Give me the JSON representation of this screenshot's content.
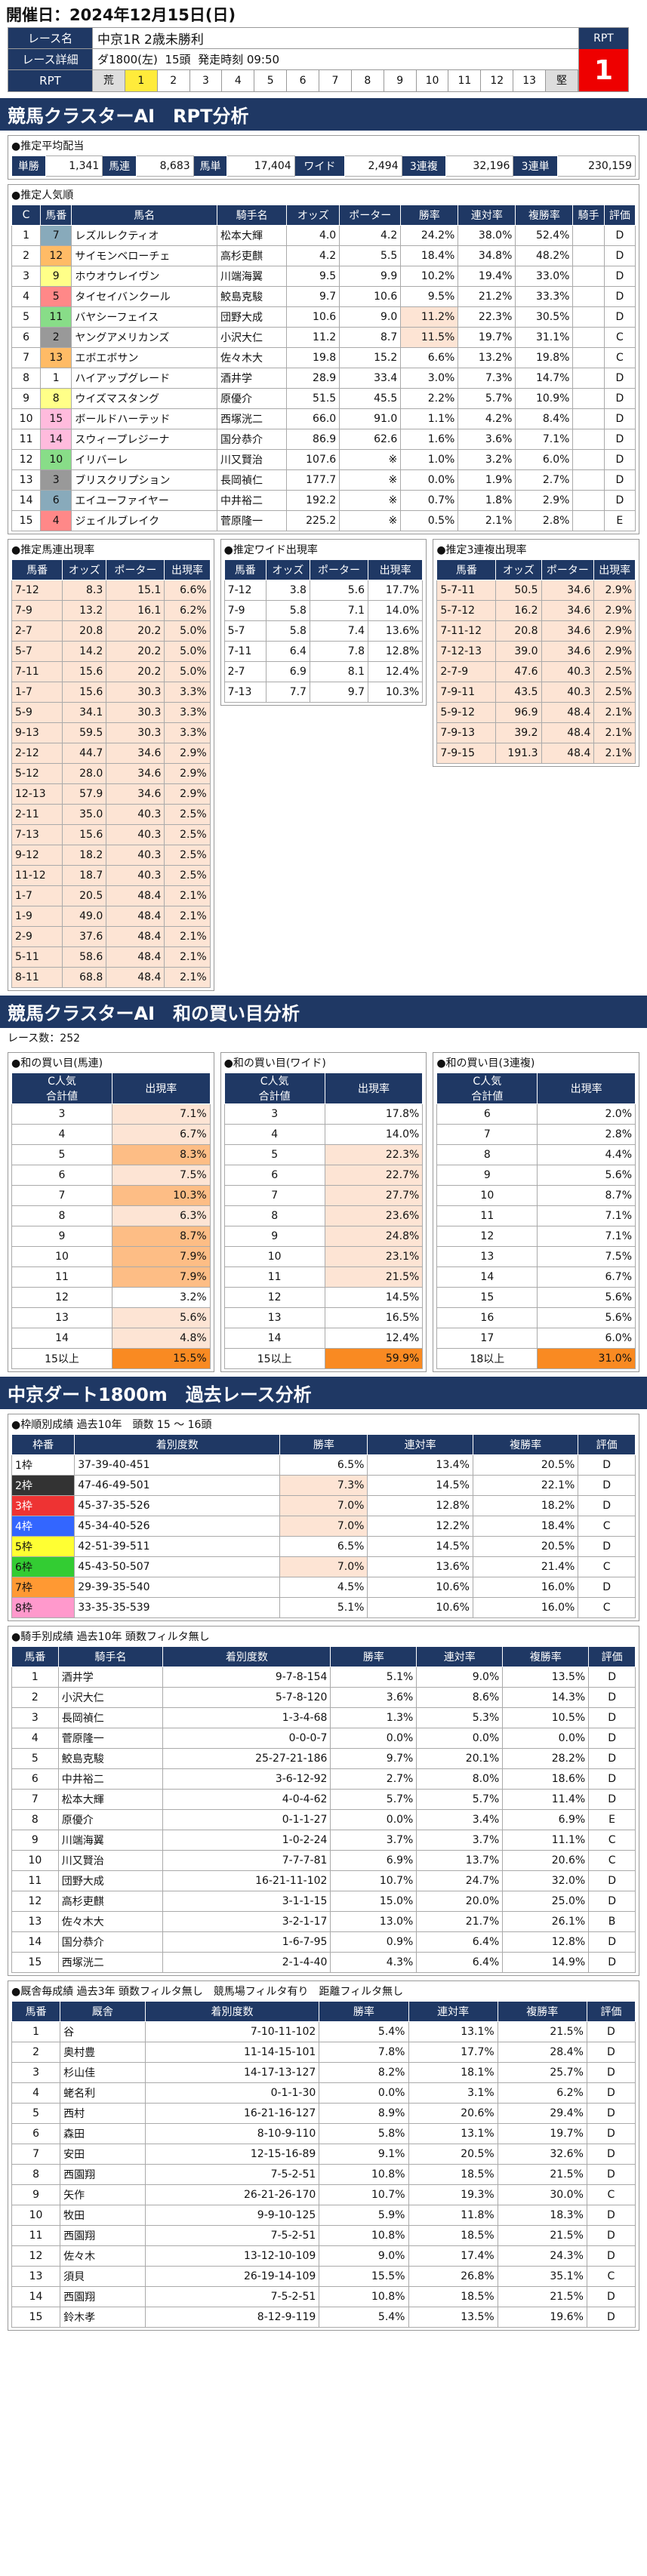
{
  "header": {
    "date": "開催日：2024年12月15日(日)"
  },
  "race": {
    "name_label": "レース名",
    "name": "中京1R 2歳未勝利",
    "detail_label": "レース詳細",
    "course": "ダ1800(左)",
    "heads": "15頭",
    "start": "発走時刻 09:50",
    "rpt_label": "RPT",
    "rpt_value": "1",
    "rpt_head": "RPT",
    "rpt_row": [
      "荒",
      "1",
      "2",
      "3",
      "4",
      "5",
      "6",
      "7",
      "8",
      "9",
      "10",
      "11",
      "12",
      "13",
      "堅"
    ]
  },
  "s1": {
    "title": "競馬クラスターAI　RPT分析",
    "payout_title": "●推定平均配当",
    "payout": [
      [
        "単勝",
        "1,341"
      ],
      [
        "馬連",
        "8,683"
      ],
      [
        "馬単",
        "17,404"
      ],
      [
        "ワイド",
        "2,494"
      ],
      [
        "3連複",
        "32,196"
      ],
      [
        "3連単",
        "230,159"
      ]
    ],
    "pop_title": "●推定人気順",
    "pop_head": [
      "C",
      "馬番",
      "馬名",
      "騎手名",
      "オッズ",
      "ポーター",
      "勝率",
      "連対率",
      "複勝率",
      "騎手",
      "評価"
    ],
    "pop_rows": [
      [
        "1",
        "7",
        "レズルレクティオ",
        "松本大輝",
        "4.0",
        "4.2",
        "24.2%",
        "38.0%",
        "52.4%",
        "",
        "D"
      ],
      [
        "2",
        "12",
        "サイモンベローチェ",
        "高杉吏麒",
        "4.2",
        "5.5",
        "18.4%",
        "34.8%",
        "48.2%",
        "",
        "D"
      ],
      [
        "3",
        "9",
        "ホウオウレイヴン",
        "川端海翼",
        "9.5",
        "9.9",
        "10.2%",
        "19.4%",
        "33.0%",
        "",
        "D"
      ],
      [
        "4",
        "5",
        "タイセイバンクール",
        "鮫島克駿",
        "9.7",
        "10.6",
        "9.5%",
        "21.2%",
        "33.3%",
        "",
        "D"
      ],
      [
        "5",
        "11",
        "バヤシーフェイス",
        "団野大成",
        "10.6",
        "9.0",
        "11.2%",
        "22.3%",
        "30.5%",
        "",
        "D"
      ],
      [
        "6",
        "2",
        "ヤングアメリカンズ",
        "小沢大仁",
        "11.2",
        "8.7",
        "11.5%",
        "19.7%",
        "31.1%",
        "",
        "C"
      ],
      [
        "7",
        "13",
        "エボエボサン",
        "佐々木大",
        "19.8",
        "15.2",
        "6.6%",
        "13.2%",
        "19.8%",
        "",
        "C"
      ],
      [
        "8",
        "1",
        "ハイアップグレード",
        "酒井学",
        "28.9",
        "33.4",
        "3.0%",
        "7.3%",
        "14.7%",
        "",
        "D"
      ],
      [
        "9",
        "8",
        "ウイズマスタング",
        "原優介",
        "51.5",
        "45.5",
        "2.2%",
        "5.7%",
        "10.9%",
        "",
        "D"
      ],
      [
        "10",
        "15",
        "ボールドハーテッド",
        "西塚洸二",
        "66.0",
        "91.0",
        "1.1%",
        "4.2%",
        "8.4%",
        "",
        "D"
      ],
      [
        "11",
        "14",
        "スウィープレジーナ",
        "国分恭介",
        "86.9",
        "62.6",
        "1.6%",
        "3.6%",
        "7.1%",
        "",
        "D"
      ],
      [
        "12",
        "10",
        "イリバーレ",
        "川又賢治",
        "107.6",
        "※",
        "1.0%",
        "3.2%",
        "6.0%",
        "",
        "D"
      ],
      [
        "13",
        "3",
        "ブリスクリプション",
        "長岡禎仁",
        "177.7",
        "※",
        "0.0%",
        "1.9%",
        "2.7%",
        "",
        "D"
      ],
      [
        "14",
        "6",
        "エイユーファイヤー",
        "中井裕二",
        "192.2",
        "※",
        "0.7%",
        "1.8%",
        "2.9%",
        "",
        "D"
      ],
      [
        "15",
        "4",
        "ジェイルブレイク",
        "菅原隆一",
        "225.2",
        "※",
        "0.5%",
        "2.1%",
        "2.8%",
        "",
        "E"
      ]
    ],
    "bet_head": [
      "馬番",
      "オッズ",
      "ポーター",
      "出現率"
    ],
    "umaren_title": "●推定馬連出現率",
    "umaren": [
      [
        "7-12",
        "8.3",
        "15.1",
        "6.6%"
      ],
      [
        "7-9",
        "13.2",
        "16.1",
        "6.2%"
      ],
      [
        "2-7",
        "20.8",
        "20.2",
        "5.0%"
      ],
      [
        "5-7",
        "14.2",
        "20.2",
        "5.0%"
      ],
      [
        "7-11",
        "15.6",
        "20.2",
        "5.0%"
      ],
      [
        "1-7",
        "15.6",
        "30.3",
        "3.3%"
      ],
      [
        "5-9",
        "34.1",
        "30.3",
        "3.3%"
      ],
      [
        "9-13",
        "59.5",
        "30.3",
        "3.3%"
      ],
      [
        "2-12",
        "44.7",
        "34.6",
        "2.9%"
      ],
      [
        "5-12",
        "28.0",
        "34.6",
        "2.9%"
      ],
      [
        "12-13",
        "57.9",
        "34.6",
        "2.9%"
      ],
      [
        "2-11",
        "35.0",
        "40.3",
        "2.5%"
      ],
      [
        "7-13",
        "15.6",
        "40.3",
        "2.5%"
      ],
      [
        "9-12",
        "18.2",
        "40.3",
        "2.5%"
      ],
      [
        "11-12",
        "18.7",
        "40.3",
        "2.5%"
      ],
      [
        "1-7",
        "20.5",
        "48.4",
        "2.1%"
      ],
      [
        "1-9",
        "49.0",
        "48.4",
        "2.1%"
      ],
      [
        "2-9",
        "37.6",
        "48.4",
        "2.1%"
      ],
      [
        "5-11",
        "58.6",
        "48.4",
        "2.1%"
      ],
      [
        "8-11",
        "68.8",
        "48.4",
        "2.1%"
      ]
    ],
    "wide_title": "●推定ワイド出現率",
    "wide": [
      [
        "7-12",
        "3.8",
        "5.6",
        "17.7%"
      ],
      [
        "7-9",
        "5.8",
        "7.1",
        "14.0%"
      ],
      [
        "5-7",
        "5.8",
        "7.4",
        "13.6%"
      ],
      [
        "7-11",
        "6.4",
        "7.8",
        "12.8%"
      ],
      [
        "2-7",
        "6.9",
        "8.1",
        "12.4%"
      ],
      [
        "7-13",
        "7.7",
        "9.7",
        "10.3%"
      ]
    ],
    "trio_title": "●推定3連複出現率",
    "trio": [
      [
        "5-7-11",
        "50.5",
        "34.6",
        "2.9%"
      ],
      [
        "5-7-12",
        "16.2",
        "34.6",
        "2.9%"
      ],
      [
        "7-11-12",
        "20.8",
        "34.6",
        "2.9%"
      ],
      [
        "7-12-13",
        "39.0",
        "34.6",
        "2.9%"
      ],
      [
        "2-7-9",
        "47.6",
        "40.3",
        "2.5%"
      ],
      [
        "7-9-11",
        "43.5",
        "40.3",
        "2.5%"
      ],
      [
        "5-9-12",
        "96.9",
        "48.4",
        "2.1%"
      ],
      [
        "7-9-13",
        "39.2",
        "48.4",
        "2.1%"
      ],
      [
        "7-9-15",
        "191.3",
        "48.4",
        "2.1%"
      ]
    ]
  },
  "s2": {
    "title": "競馬クラスターAI　和の買い目分析",
    "count": "レース数：252",
    "head": [
      "C人気\n合計値",
      "出現率"
    ],
    "umaren_title": "●和の買い目(馬連)",
    "umaren": [
      [
        "3",
        "7.1%"
      ],
      [
        "4",
        "6.7%"
      ],
      [
        "5",
        "8.3%"
      ],
      [
        "6",
        "7.5%"
      ],
      [
        "7",
        "10.3%"
      ],
      [
        "8",
        "6.3%"
      ],
      [
        "9",
        "8.7%"
      ],
      [
        "10",
        "7.9%"
      ],
      [
        "11",
        "7.9%"
      ],
      [
        "12",
        "3.2%"
      ],
      [
        "13",
        "5.6%"
      ],
      [
        "14",
        "4.8%"
      ],
      [
        "15以上",
        "15.5%"
      ]
    ],
    "wide_title": "●和の買い目(ワイド)",
    "wide": [
      [
        "3",
        "17.8%"
      ],
      [
        "4",
        "14.0%"
      ],
      [
        "5",
        "22.3%"
      ],
      [
        "6",
        "22.7%"
      ],
      [
        "7",
        "27.7%"
      ],
      [
        "8",
        "23.6%"
      ],
      [
        "9",
        "24.8%"
      ],
      [
        "10",
        "23.1%"
      ],
      [
        "11",
        "21.5%"
      ],
      [
        "12",
        "14.5%"
      ],
      [
        "13",
        "16.5%"
      ],
      [
        "14",
        "12.4%"
      ],
      [
        "15以上",
        "59.9%"
      ]
    ],
    "trio_title": "●和の買い目(3連複)",
    "trio": [
      [
        "6",
        "2.0%"
      ],
      [
        "7",
        "2.8%"
      ],
      [
        "8",
        "4.4%"
      ],
      [
        "9",
        "5.6%"
      ],
      [
        "10",
        "8.7%"
      ],
      [
        "11",
        "7.1%"
      ],
      [
        "12",
        "7.1%"
      ],
      [
        "13",
        "7.5%"
      ],
      [
        "14",
        "6.7%"
      ],
      [
        "15",
        "5.6%"
      ],
      [
        "16",
        "5.6%"
      ],
      [
        "17",
        "6.0%"
      ],
      [
        "18以上",
        "31.0%"
      ]
    ]
  },
  "s3": {
    "title": "中京ダート1800m　過去レース分析",
    "waku_title": "●枠順別成績 過去10年　頭数 15 ～ 16頭",
    "waku_head": [
      "枠番",
      "着別度数",
      "勝率",
      "連対率",
      "複勝率",
      "評価"
    ],
    "waku": [
      [
        "1枠",
        "37-39-40-451",
        "6.5%",
        "13.4%",
        "20.5%",
        "D"
      ],
      [
        "2枠",
        "47-46-49-501",
        "7.3%",
        "14.5%",
        "22.1%",
        "D"
      ],
      [
        "3枠",
        "45-37-35-526",
        "7.0%",
        "12.8%",
        "18.2%",
        "D"
      ],
      [
        "4枠",
        "45-34-40-526",
        "7.0%",
        "12.2%",
        "18.4%",
        "C"
      ],
      [
        "5枠",
        "42-51-39-511",
        "6.5%",
        "14.5%",
        "20.5%",
        "D"
      ],
      [
        "6枠",
        "45-43-50-507",
        "7.0%",
        "13.6%",
        "21.4%",
        "C"
      ],
      [
        "7枠",
        "29-39-35-540",
        "4.5%",
        "10.6%",
        "16.0%",
        "D"
      ],
      [
        "8枠",
        "33-35-35-539",
        "5.1%",
        "10.6%",
        "16.0%",
        "C"
      ]
    ],
    "jockey_title": "●騎手別成績 過去10年 頭数フィルタ無し",
    "jockey_head": [
      "馬番",
      "騎手名",
      "着別度数",
      "勝率",
      "連対率",
      "複勝率",
      "評価"
    ],
    "jockey": [
      [
        "1",
        "酒井学",
        "9-7-8-154",
        "5.1%",
        "9.0%",
        "13.5%",
        "D"
      ],
      [
        "2",
        "小沢大仁",
        "5-7-8-120",
        "3.6%",
        "8.6%",
        "14.3%",
        "D"
      ],
      [
        "3",
        "長岡禎仁",
        "1-3-4-68",
        "1.3%",
        "5.3%",
        "10.5%",
        "D"
      ],
      [
        "4",
        "菅原隆一",
        "0-0-0-7",
        "0.0%",
        "0.0%",
        "0.0%",
        "D"
      ],
      [
        "5",
        "鮫島克駿",
        "25-27-21-186",
        "9.7%",
        "20.1%",
        "28.2%",
        "D"
      ],
      [
        "6",
        "中井裕二",
        "3-6-12-92",
        "2.7%",
        "8.0%",
        "18.6%",
        "D"
      ],
      [
        "7",
        "松本大輝",
        "4-0-4-62",
        "5.7%",
        "5.7%",
        "11.4%",
        "D"
      ],
      [
        "8",
        "原優介",
        "0-1-1-27",
        "0.0%",
        "3.4%",
        "6.9%",
        "E"
      ],
      [
        "9",
        "川端海翼",
        "1-0-2-24",
        "3.7%",
        "3.7%",
        "11.1%",
        "C"
      ],
      [
        "10",
        "川又賢治",
        "7-7-7-81",
        "6.9%",
        "13.7%",
        "20.6%",
        "C"
      ],
      [
        "11",
        "団野大成",
        "16-21-11-102",
        "10.7%",
        "24.7%",
        "32.0%",
        "D"
      ],
      [
        "12",
        "高杉吏麒",
        "3-1-1-15",
        "15.0%",
        "20.0%",
        "25.0%",
        "D"
      ],
      [
        "13",
        "佐々木大",
        "3-2-1-17",
        "13.0%",
        "21.7%",
        "26.1%",
        "B"
      ],
      [
        "14",
        "国分恭介",
        "1-6-7-95",
        "0.9%",
        "6.4%",
        "12.8%",
        "D"
      ],
      [
        "15",
        "西塚洸二",
        "2-1-4-40",
        "4.3%",
        "6.4%",
        "14.9%",
        "D"
      ]
    ],
    "trainer_title": "●厩舎毎成績 過去3年 頭数フィルタ無し　競馬場フィルタ有り　距離フィルタ無し",
    "trainer_head": [
      "馬番",
      "厩舎",
      "着別度数",
      "勝率",
      "連対率",
      "複勝率",
      "評価"
    ],
    "trainer": [
      [
        "1",
        "谷",
        "7-10-11-102",
        "5.4%",
        "13.1%",
        "21.5%",
        "D"
      ],
      [
        "2",
        "奥村豊",
        "11-14-15-101",
        "7.8%",
        "17.7%",
        "28.4%",
        "D"
      ],
      [
        "3",
        "杉山佳",
        "14-17-13-127",
        "8.2%",
        "18.1%",
        "25.7%",
        "D"
      ],
      [
        "4",
        "蛯名利",
        "0-1-1-30",
        "0.0%",
        "3.1%",
        "6.2%",
        "D"
      ],
      [
        "5",
        "西村",
        "16-21-16-127",
        "8.9%",
        "20.6%",
        "29.4%",
        "D"
      ],
      [
        "6",
        "森田",
        "8-10-9-110",
        "5.8%",
        "13.1%",
        "19.7%",
        "D"
      ],
      [
        "7",
        "安田",
        "12-15-16-89",
        "9.1%",
        "20.5%",
        "32.6%",
        "D"
      ],
      [
        "8",
        "西園翔",
        "7-5-2-51",
        "10.8%",
        "18.5%",
        "21.5%",
        "D"
      ],
      [
        "9",
        "矢作",
        "26-21-26-170",
        "10.7%",
        "19.3%",
        "30.0%",
        "C"
      ],
      [
        "10",
        "牧田",
        "9-9-10-125",
        "5.9%",
        "11.8%",
        "18.3%",
        "D"
      ],
      [
        "11",
        "西園翔",
        "7-5-2-51",
        "10.8%",
        "18.5%",
        "21.5%",
        "D"
      ],
      [
        "12",
        "佐々木",
        "13-12-10-109",
        "9.0%",
        "17.4%",
        "24.3%",
        "D"
      ],
      [
        "13",
        "須貝",
        "26-19-14-109",
        "15.5%",
        "26.8%",
        "35.1%",
        "C"
      ],
      [
        "14",
        "西園翔",
        "7-5-2-51",
        "10.8%",
        "18.5%",
        "21.5%",
        "D"
      ],
      [
        "15",
        "鈴木孝",
        "8-12-9-119",
        "5.4%",
        "13.5%",
        "19.6%",
        "D"
      ]
    ]
  }
}
